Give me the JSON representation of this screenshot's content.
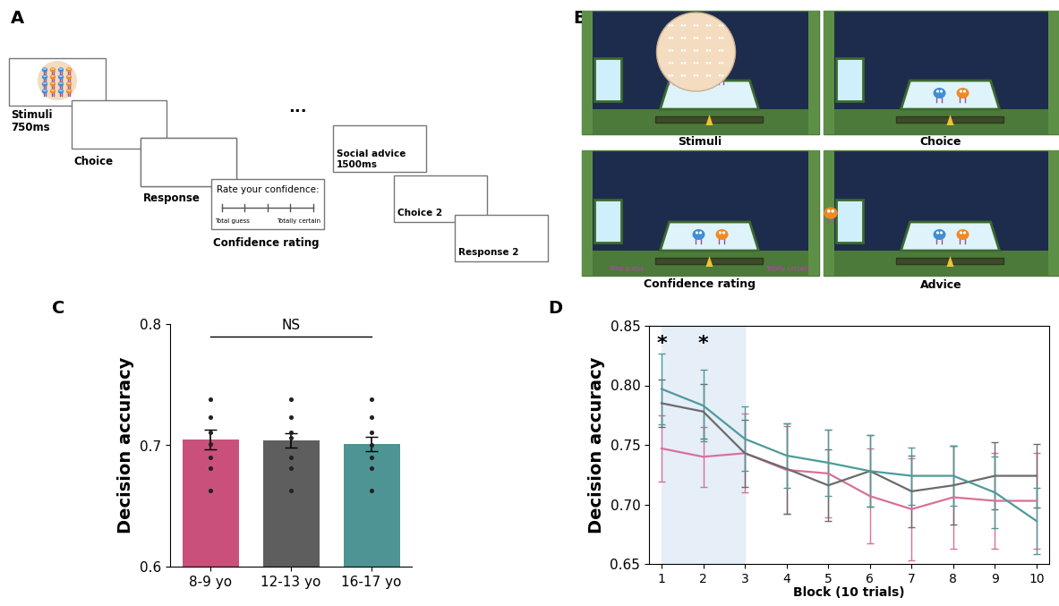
{
  "chart_data": [
    {
      "type": "bar",
      "categories": [
        "8-9 yo",
        "12-13 yo",
        "16-17 yo"
      ],
      "values": [
        0.705,
        0.704,
        0.701
      ],
      "errors": [
        0.008,
        0.006,
        0.006
      ],
      "colors": [
        "#c9507a",
        "#5e5e5e",
        "#4f9494"
      ],
      "points": [
        [
          0.738,
          0.723,
          0.711,
          0.701,
          0.69,
          0.681,
          0.663
        ],
        [
          0.738,
          0.723,
          0.711,
          0.706,
          0.69,
          0.681,
          0.663
        ],
        [
          0.738,
          0.723,
          0.711,
          0.7,
          0.69,
          0.681,
          0.663
        ]
      ],
      "ylim": [
        0.6,
        0.8
      ],
      "yticks": [
        0.6,
        0.7,
        0.8
      ],
      "y_label": "Decision accuracy",
      "annotations": [
        {
          "text": "NS",
          "from": "8-9 yo",
          "to": "16-17 yo",
          "y": 0.79
        }
      ]
    },
    {
      "type": "line",
      "x": [
        1,
        2,
        3,
        4,
        5,
        6,
        7,
        8,
        9,
        10
      ],
      "series": [
        {
          "color": "#d9709a",
          "values": [
            0.747,
            0.74,
            0.743,
            0.729,
            0.726,
            0.707,
            0.696,
            0.706,
            0.703,
            0.703
          ],
          "errors": [
            0.028,
            0.025,
            0.033,
            0.037,
            0.037,
            0.04,
            0.043,
            0.043,
            0.04,
            0.04
          ]
        },
        {
          "color": "#6b6b6b",
          "values": [
            0.785,
            0.778,
            0.743,
            0.73,
            0.716,
            0.728,
            0.711,
            0.716,
            0.724,
            0.724
          ],
          "errors": [
            0.02,
            0.023,
            0.028,
            0.038,
            0.03,
            0.03,
            0.03,
            0.033,
            0.028,
            0.027
          ]
        },
        {
          "color": "#4f9a9a",
          "values": [
            0.797,
            0.783,
            0.755,
            0.741,
            0.735,
            0.728,
            0.724,
            0.724,
            0.71,
            0.686
          ],
          "errors": [
            0.03,
            0.03,
            0.027,
            0.027,
            0.028,
            0.03,
            0.024,
            0.025,
            0.03,
            0.028
          ]
        }
      ],
      "xlim": [
        0.7,
        10.3
      ],
      "xticks": [
        1,
        2,
        3,
        4,
        5,
        6,
        7,
        8,
        9,
        10
      ],
      "ylim": [
        0.65,
        0.85
      ],
      "yticks": [
        0.65,
        {
          "value": 0.7,
          "label": "0.70"
        },
        0.75,
        {
          "value": 0.8,
          "label": "0.80"
        },
        0.85
      ],
      "x_label": "Block (10 trials)",
      "y_label": "Decision accuracy",
      "highlight": [
        1,
        3
      ],
      "annotations": [
        {
          "text": "*",
          "x": 1,
          "y": 0.835
        },
        {
          "text": "*",
          "x": 2,
          "y": 0.835
        }
      ]
    }
  ],
  "diagram": {
    "panel_labels": [
      "A",
      "B",
      "C",
      "D"
    ],
    "task_sequence": {
      "steps": [
        {
          "label": "Stimuli",
          "duration": "750ms"
        },
        {
          "label": "Choice"
        },
        {
          "label": "Response"
        },
        {
          "label": "Confidence rating"
        },
        {
          "label": "Social advice",
          "duration": "1500ms"
        },
        {
          "label": "Choice 2"
        },
        {
          "label": "Response 2"
        }
      ],
      "ellipsis": "...",
      "confidence_prompt": "Rate your confidence:",
      "scale_ends": [
        "Total guess",
        "Totally certain"
      ]
    },
    "screenshots": {
      "captions": [
        "Stimuli",
        "Choice",
        "Confidence rating",
        "Advice"
      ],
      "scale_ends": [
        "Total guess",
        "Totally certain"
      ]
    }
  }
}
